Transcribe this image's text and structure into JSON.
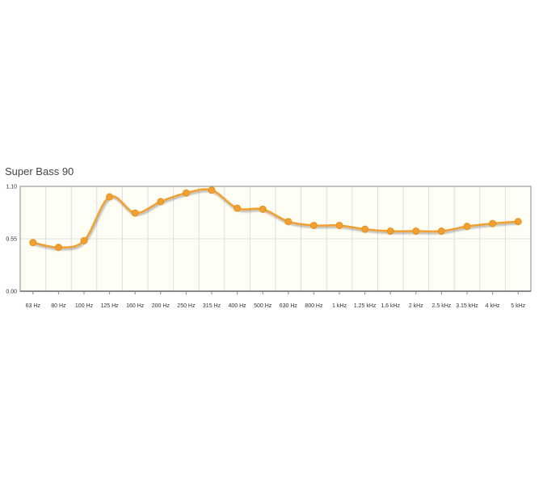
{
  "chart_data": {
    "type": "line",
    "title": "Super Bass 90",
    "xlabel": "",
    "ylabel": "",
    "categories": [
      "63 Hz",
      "80 Hz",
      "100 Hz",
      "125 Hz",
      "160 Hz",
      "200 Hz",
      "250 Hz",
      "315 Hz",
      "400 Hz",
      "500 Hz",
      "630 Hz",
      "800 Hz",
      "1 kHz",
      "1.25 kHz",
      "1.6 kHz",
      "2 kHz",
      "2.5 kHz",
      "3.15 kHz",
      "4 kHz",
      "5 kHz"
    ],
    "series": [
      {
        "values": [
          0.51,
          0.46,
          0.53,
          0.99,
          0.82,
          0.94,
          1.03,
          1.06,
          0.87,
          0.86,
          0.73,
          0.69,
          0.69,
          0.65,
          0.63,
          0.63,
          0.63,
          0.68,
          0.71,
          0.73
        ]
      }
    ],
    "ylim": [
      0,
      1.1
    ],
    "y_ticks": [
      "0.00",
      "0.55",
      "1.10"
    ],
    "grid": true,
    "colors": {
      "line": "#f0a030",
      "marker": "#f0a030",
      "plot_bg": "#fffef5",
      "grid": "#dddddd",
      "axis": "#888888"
    }
  }
}
